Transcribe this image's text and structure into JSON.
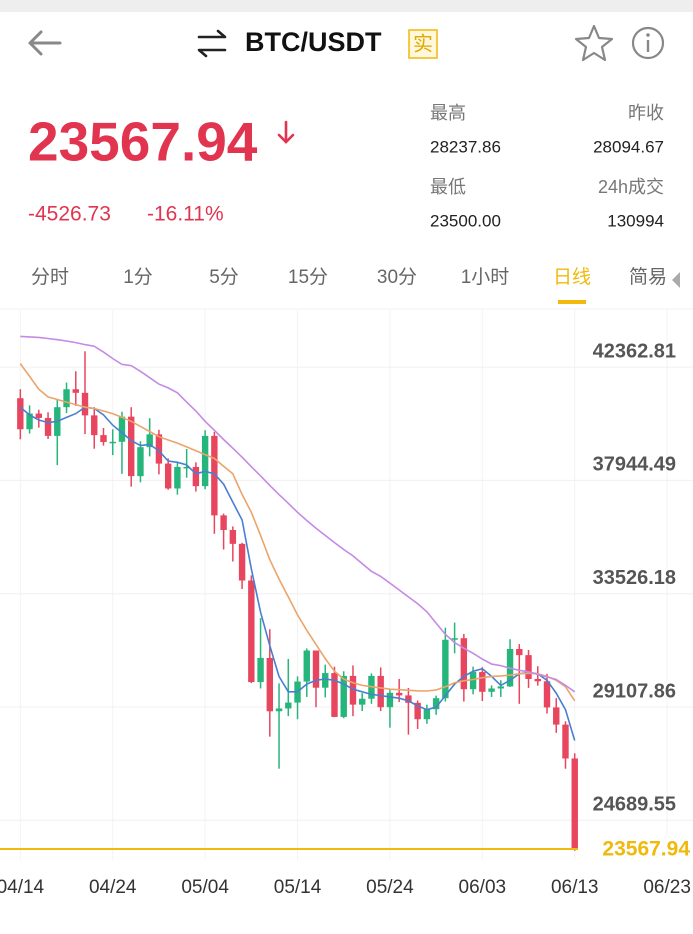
{
  "header": {
    "title": "BTC/USDT",
    "badge": "实"
  },
  "ticker": {
    "price": "23567.94",
    "change": "-4526.73",
    "change_pct": "-16.11%",
    "stats": [
      {
        "label": "最高",
        "value": "28237.86"
      },
      {
        "label": "昨收",
        "value": "28094.67"
      },
      {
        "label": "最低",
        "value": "23500.00"
      },
      {
        "label": "24h成交",
        "value": "130994"
      }
    ]
  },
  "tabs": [
    "分时",
    "1分",
    "5分",
    "15分",
    "30分",
    "1小时",
    "日线",
    "简易"
  ],
  "active_tab": 6,
  "chart_data": {
    "type": "candlestick",
    "x": [
      0,
      1,
      2,
      3,
      4,
      5,
      6,
      7,
      8,
      9,
      10,
      11,
      12,
      13,
      14,
      15,
      16,
      17,
      18,
      19,
      20,
      21,
      22,
      23,
      24,
      25,
      26,
      27,
      28,
      29,
      30,
      31,
      32,
      33,
      34,
      35,
      36,
      37,
      38,
      39,
      40,
      41,
      42,
      43,
      44,
      45,
      46,
      47,
      48,
      49,
      50,
      51,
      52,
      53,
      54,
      55,
      56,
      57,
      58,
      59,
      60
    ],
    "open": [
      41150,
      39940,
      40550,
      40380,
      39680,
      40800,
      41500,
      41360,
      40480,
      39710,
      39440,
      39450,
      40430,
      38110,
      39240,
      39740,
      38600,
      37630,
      38470,
      38470,
      37720,
      39680,
      36580,
      36010,
      35470,
      34040,
      30080,
      31020,
      28940,
      29050,
      29280,
      30100,
      31310,
      29860,
      30430,
      28720,
      30320,
      29200,
      29430,
      30320,
      29100,
      29660,
      29560,
      29270,
      28630,
      29020,
      29450,
      31730,
      31790,
      29800,
      30470,
      29700,
      29830,
      29910,
      31370,
      31130,
      30200,
      30110,
      29090,
      28420,
      27100
    ],
    "high": [
      41500,
      40870,
      40700,
      40600,
      41100,
      41760,
      42200,
      42980,
      40800,
      39990,
      39940,
      40620,
      40800,
      39470,
      40370,
      39920,
      38800,
      38680,
      39170,
      38650,
      39900,
      39840,
      36650,
      36150,
      35510,
      34240,
      32570,
      32140,
      30030,
      30980,
      30300,
      31390,
      31310,
      30760,
      30680,
      30500,
      30730,
      29650,
      30420,
      30650,
      29800,
      30200,
      29850,
      29360,
      29200,
      29550,
      32200,
      32400,
      31960,
      30680,
      30660,
      29950,
      30150,
      31750,
      31560,
      31330,
      30700,
      30400,
      29450,
      28550,
      27300
    ],
    "low": [
      39550,
      39770,
      40000,
      39560,
      38540,
      40570,
      40850,
      39750,
      39180,
      39300,
      38930,
      38200,
      37700,
      37870,
      38880,
      38180,
      37580,
      37390,
      38050,
      37510,
      37600,
      35860,
      35250,
      34780,
      33710,
      30040,
      29830,
      27950,
      26700,
      28750,
      28630,
      29500,
      29100,
      29480,
      28710,
      28670,
      28750,
      28950,
      29230,
      28950,
      28300,
      29300,
      28030,
      28250,
      28450,
      28800,
      29320,
      31200,
      29320,
      29600,
      29340,
      29500,
      29500,
      29890,
      29230,
      29850,
      29940,
      28850,
      28100,
      26700,
      23500
    ],
    "close": [
      39940,
      40550,
      40380,
      39680,
      40800,
      41500,
      41360,
      40480,
      39710,
      39440,
      39450,
      40430,
      38110,
      39240,
      39740,
      38600,
      37630,
      38470,
      38470,
      37720,
      39680,
      36580,
      36010,
      35470,
      34040,
      30080,
      31020,
      28940,
      29050,
      29280,
      30100,
      31310,
      29860,
      30430,
      28720,
      30320,
      29200,
      29430,
      30320,
      29100,
      29660,
      29560,
      29270,
      28630,
      29020,
      29450,
      31730,
      31790,
      29800,
      30470,
      29700,
      29830,
      29910,
      31370,
      31130,
      30200,
      30110,
      29090,
      28420,
      27100,
      23567.94
    ],
    "up_color": "#26b57a",
    "down_color": "#e8455f",
    "series": [
      {
        "color": "#4a7fd0",
        "values": [
          40800,
          40500,
          40300,
          40200,
          40250,
          40400,
          40550,
          40800,
          40750,
          40500,
          40100,
          39800,
          39500,
          39300,
          39350,
          39100,
          38700,
          38650,
          38550,
          38200,
          38300,
          38200,
          37800,
          37100,
          36400,
          34500,
          32800,
          31500,
          30300,
          29700,
          29700,
          30000,
          30150,
          30200,
          30150,
          30000,
          29800,
          29700,
          29600,
          29550,
          29500,
          29450,
          29350,
          29150,
          29000,
          29100,
          29550,
          30000,
          30300,
          30500,
          30600,
          30300,
          29950,
          30150,
          30400,
          30450,
          30400,
          30150,
          29650,
          29000,
          27800
        ]
      },
      {
        "color": "#eba46a",
        "values": [
          42500,
          42000,
          41500,
          41200,
          41100,
          41000,
          40900,
          40800,
          40750,
          40650,
          40550,
          40400,
          40250,
          40050,
          39850,
          39650,
          39520,
          39400,
          39250,
          39100,
          38950,
          38800,
          38500,
          38200,
          37400,
          36700,
          35800,
          34850,
          34100,
          33400,
          32700,
          32100,
          31550,
          31000,
          30500,
          30200,
          30050,
          29950,
          29900,
          29850,
          29800,
          29780,
          29760,
          29740,
          29730,
          29770,
          29900,
          30050,
          30130,
          30180,
          30250,
          30300,
          30320,
          30350,
          30400,
          30420,
          30400,
          30300,
          30150,
          29900,
          29350
        ]
      },
      {
        "color": "#c58ae6",
        "values": [
          43560,
          43540,
          43520,
          43480,
          43430,
          43380,
          43320,
          43240,
          43180,
          42950,
          42700,
          42470,
          42420,
          42200,
          41950,
          41700,
          41550,
          41360,
          41000,
          40650,
          40250,
          39900,
          39540,
          39200,
          38850,
          38480,
          38120,
          37750,
          37390,
          37050,
          36700,
          36380,
          36080,
          35800,
          35520,
          35250,
          35000,
          34700,
          34400,
          34200,
          33940,
          33670,
          33400,
          33140,
          32820,
          32380,
          31940,
          31620,
          31400,
          31200,
          30980,
          30780,
          30720,
          30620,
          30540,
          30480,
          30380,
          30280,
          30180,
          29950,
          29700
        ]
      }
    ],
    "xlim": [
      -2.2,
      72.8
    ],
    "xticks": [
      {
        "value": 0,
        "label": "04/14"
      },
      {
        "value": 10,
        "label": "04/24"
      },
      {
        "value": 20,
        "label": "05/04"
      },
      {
        "value": 30,
        "label": "05/14"
      },
      {
        "value": 40,
        "label": "05/24"
      },
      {
        "value": 50,
        "label": "06/03"
      },
      {
        "value": 60,
        "label": "06/13"
      },
      {
        "value": 70,
        "label": "06/23"
      }
    ],
    "ylim": [
      22750,
      44590
    ],
    "yticks": [
      42362.81,
      37944.49,
      33526.18,
      29107.86,
      24689.55
    ],
    "last_price": 23567.94,
    "last_price_color": "#f0b90b",
    "grid": true
  }
}
